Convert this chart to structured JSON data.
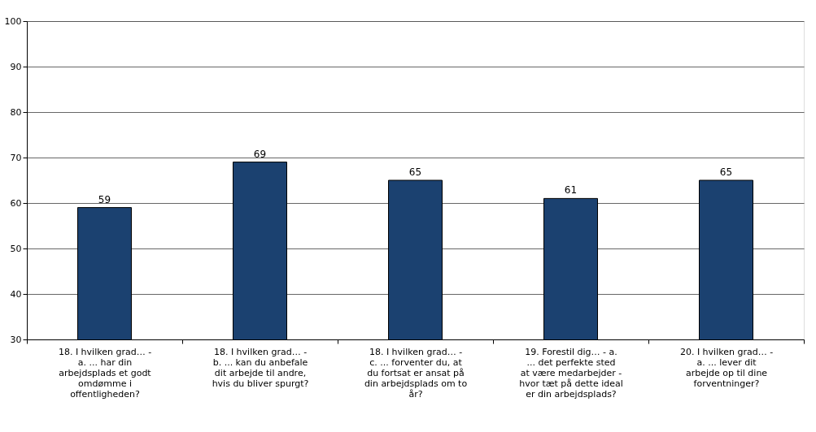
{
  "chart_data": {
    "type": "bar",
    "categories": [
      "18. I hvilken grad… - a. ... har din arbejdsplads et godt omdømme i offentligheden?",
      "18. I hvilken grad… - b. ... kan du anbefale dit arbejde til andre, hvis du bliver spurgt?",
      "18. I hvilken grad… - c. ... forventer du, at du fortsat er ansat på din arbejdsplads om to år?",
      "19. Forestil dig… - a. ... det perfekte sted at være medarbejder - hvor tæt på dette ideal er din arbejdsplads?",
      "20. I hvilken grad… - a. ... lever dit arbejde op til dine forventninger?"
    ],
    "values": [
      59,
      69,
      65,
      61,
      65
    ],
    "color": "#1b4170",
    "ylim": [
      30,
      100
    ],
    "yticks": [
      30,
      40,
      50,
      60,
      70,
      80,
      90,
      100
    ],
    "grid": "y",
    "data_labels": true
  }
}
